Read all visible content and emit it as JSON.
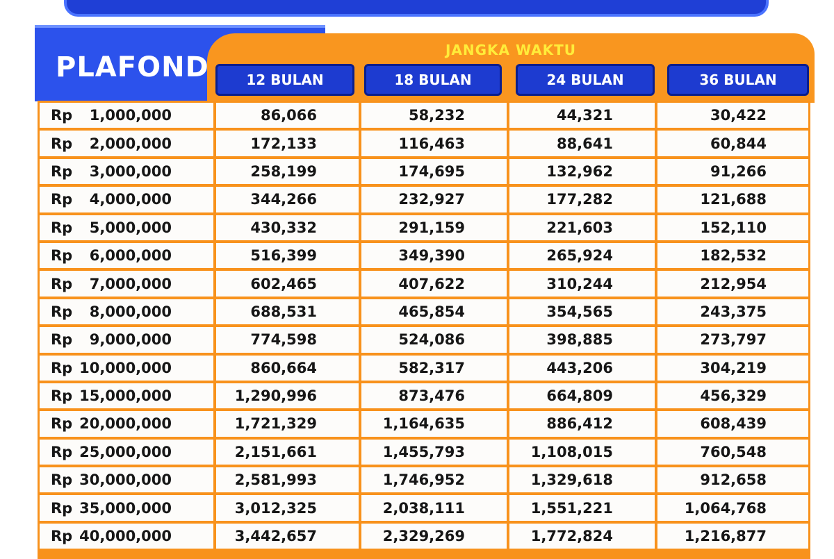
{
  "header": {
    "plafond_label": "PLAFOND",
    "jangka_label": "JANGKA WAKTU",
    "durations": [
      "12 BULAN",
      "18 BULAN",
      "24 BULAN",
      "36 BULAN"
    ]
  },
  "colors": {
    "banner_blue": "#1f3fd6",
    "plafond_blue": "#2c52ec",
    "orange": "#f9961f",
    "jangka_yellow": "#ffec3a",
    "duration_blue": "#1d3bd0"
  },
  "table": {
    "rows": [
      {
        "currency": "Rp",
        "amount": "1,000,000",
        "values": [
          "86,066",
          "58,232",
          "44,321",
          "30,422"
        ]
      },
      {
        "currency": "Rp",
        "amount": "2,000,000",
        "values": [
          "172,133",
          "116,463",
          "88,641",
          "60,844"
        ]
      },
      {
        "currency": "Rp",
        "amount": "3,000,000",
        "values": [
          "258,199",
          "174,695",
          "132,962",
          "91,266"
        ]
      },
      {
        "currency": "Rp",
        "amount": "4,000,000",
        "values": [
          "344,266",
          "232,927",
          "177,282",
          "121,688"
        ]
      },
      {
        "currency": "Rp",
        "amount": "5,000,000",
        "values": [
          "430,332",
          "291,159",
          "221,603",
          "152,110"
        ]
      },
      {
        "currency": "Rp",
        "amount": "6,000,000",
        "values": [
          "516,399",
          "349,390",
          "265,924",
          "182,532"
        ]
      },
      {
        "currency": "Rp",
        "amount": "7,000,000",
        "values": [
          "602,465",
          "407,622",
          "310,244",
          "212,954"
        ]
      },
      {
        "currency": "Rp",
        "amount": "8,000,000",
        "values": [
          "688,531",
          "465,854",
          "354,565",
          "243,375"
        ]
      },
      {
        "currency": "Rp",
        "amount": "9,000,000",
        "values": [
          "774,598",
          "524,086",
          "398,885",
          "273,797"
        ]
      },
      {
        "currency": "Rp",
        "amount": "10,000,000",
        "values": [
          "860,664",
          "582,317",
          "443,206",
          "304,219"
        ]
      },
      {
        "currency": "Rp",
        "amount": "15,000,000",
        "values": [
          "1,290,996",
          "873,476",
          "664,809",
          "456,329"
        ]
      },
      {
        "currency": "Rp",
        "amount": "20,000,000",
        "values": [
          "1,721,329",
          "1,164,635",
          "886,412",
          "608,439"
        ]
      },
      {
        "currency": "Rp",
        "amount": "25,000,000",
        "values": [
          "2,151,661",
          "1,455,793",
          "1,108,015",
          "760,548"
        ]
      },
      {
        "currency": "Rp",
        "amount": "30,000,000",
        "values": [
          "2,581,993",
          "1,746,952",
          "1,329,618",
          "912,658"
        ]
      },
      {
        "currency": "Rp",
        "amount": "35,000,000",
        "values": [
          "3,012,325",
          "2,038,111",
          "1,551,221",
          "1,064,768"
        ]
      },
      {
        "currency": "Rp",
        "amount": "40,000,000",
        "values": [
          "3,442,657",
          "2,329,269",
          "1,772,824",
          "1,216,877"
        ]
      }
    ]
  }
}
